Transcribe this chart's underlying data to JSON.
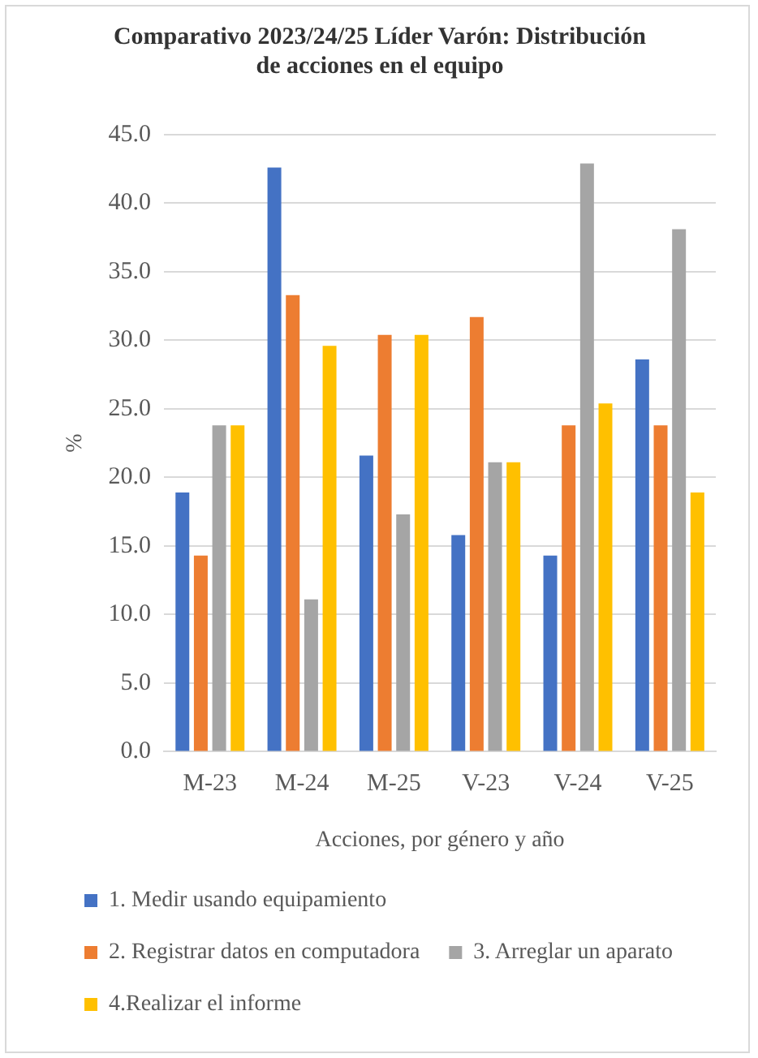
{
  "chart_data": {
    "type": "bar",
    "title": "Comparativo 2023/24/25 Líder Varón: Distribución de acciones en el equipo",
    "xlabel": "Acciones, por género y año",
    "ylabel": "%",
    "categories": [
      "M-23",
      "M-24",
      "M-25",
      "V-23",
      "V-24",
      "V-25"
    ],
    "series": [
      {
        "name": "1. Medir usando equipamiento",
        "color": "#4472c4",
        "values": [
          18.9,
          42.6,
          21.6,
          15.8,
          14.3,
          28.6
        ]
      },
      {
        "name": "2. Registrar datos en computadora",
        "color": "#ed7d31",
        "values": [
          14.3,
          33.3,
          30.4,
          31.7,
          23.8,
          23.8
        ]
      },
      {
        "name": "3. Arreglar un aparato",
        "color": "#a5a5a5",
        "values": [
          23.8,
          11.1,
          17.3,
          21.1,
          42.9,
          38.1
        ]
      },
      {
        "name": "4.Realizar el informe",
        "color": "#ffc000",
        "values": [
          23.8,
          29.6,
          30.4,
          21.1,
          25.4,
          18.9
        ]
      }
    ],
    "ylim": [
      0,
      45
    ],
    "yticks": [
      {
        "value": 0,
        "label": "0.0"
      },
      {
        "value": 5,
        "label": "5.0"
      },
      {
        "value": 10,
        "label": "10.0"
      },
      {
        "value": 15,
        "label": "15.0"
      },
      {
        "value": 20,
        "label": "20.0"
      },
      {
        "value": 25,
        "label": "25.0"
      },
      {
        "value": 30,
        "label": "30.0"
      },
      {
        "value": 35,
        "label": "35.0"
      },
      {
        "value": 40,
        "label": "40.0"
      },
      {
        "value": 45,
        "label": "45.0"
      }
    ],
    "grid": "y",
    "legend": "bottom"
  }
}
